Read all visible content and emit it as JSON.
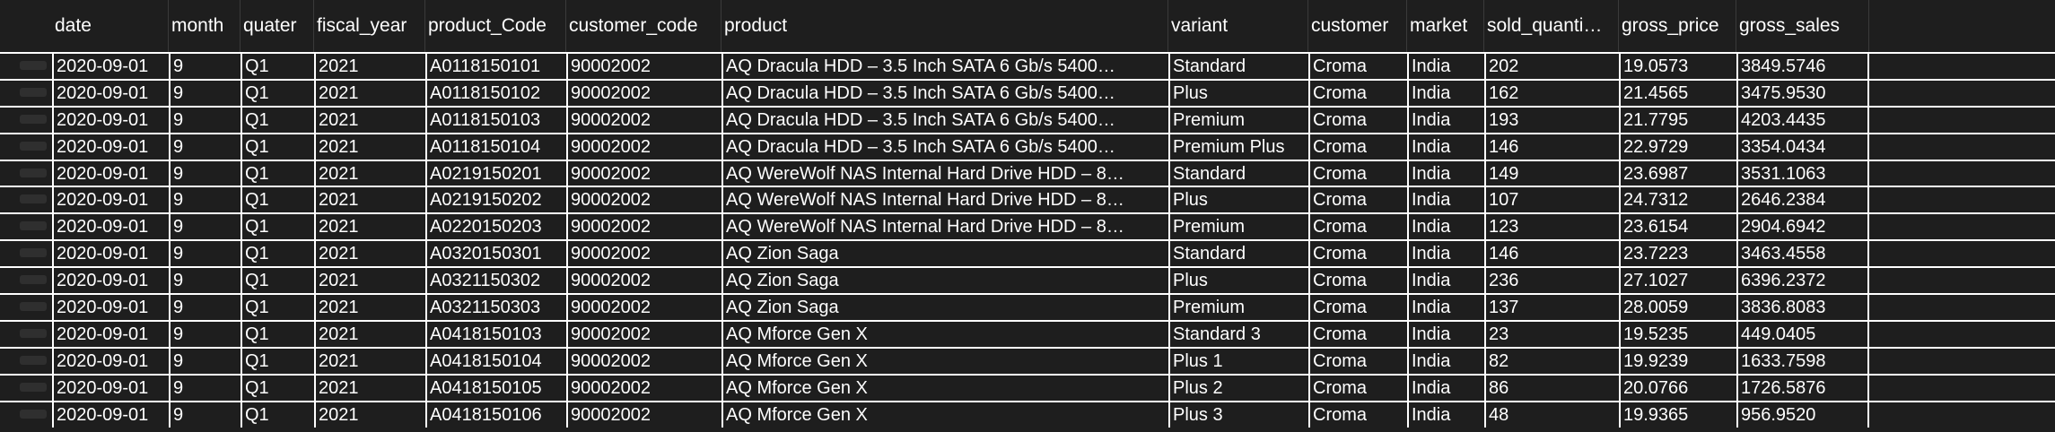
{
  "columns": [
    {
      "key": "date",
      "label": "date"
    },
    {
      "key": "month",
      "label": "month"
    },
    {
      "key": "quater",
      "label": "quater"
    },
    {
      "key": "fiscal_year",
      "label": "fiscal_year"
    },
    {
      "key": "product_code",
      "label": "product_Code"
    },
    {
      "key": "customer_code",
      "label": "customer_code"
    },
    {
      "key": "product",
      "label": "product"
    },
    {
      "key": "variant",
      "label": "variant"
    },
    {
      "key": "customer",
      "label": "customer"
    },
    {
      "key": "market",
      "label": "market"
    },
    {
      "key": "sold_quantity",
      "label": "sold_quanti…"
    },
    {
      "key": "gross_price",
      "label": "gross_price"
    },
    {
      "key": "gross_sales",
      "label": "gross_sales"
    }
  ],
  "rows": [
    [
      "2020-09-01",
      "9",
      "Q1",
      "2021",
      "A0118150101",
      "90002002",
      "AQ Dracula HDD – 3.5 Inch SATA 6 Gb/s 5400…",
      "Standard",
      "Croma",
      "India",
      "202",
      "19.0573",
      "3849.5746"
    ],
    [
      "2020-09-01",
      "9",
      "Q1",
      "2021",
      "A0118150102",
      "90002002",
      "AQ Dracula HDD – 3.5 Inch SATA 6 Gb/s 5400…",
      "Plus",
      "Croma",
      "India",
      "162",
      "21.4565",
      "3475.9530"
    ],
    [
      "2020-09-01",
      "9",
      "Q1",
      "2021",
      "A0118150103",
      "90002002",
      "AQ Dracula HDD – 3.5 Inch SATA 6 Gb/s 5400…",
      "Premium",
      "Croma",
      "India",
      "193",
      "21.7795",
      "4203.4435"
    ],
    [
      "2020-09-01",
      "9",
      "Q1",
      "2021",
      "A0118150104",
      "90002002",
      "AQ Dracula HDD – 3.5 Inch SATA 6 Gb/s 5400…",
      "Premium Plus",
      "Croma",
      "India",
      "146",
      "22.9729",
      "3354.0434"
    ],
    [
      "2020-09-01",
      "9",
      "Q1",
      "2021",
      "A0219150201",
      "90002002",
      "AQ WereWolf NAS Internal Hard Drive HDD – 8…",
      "Standard",
      "Croma",
      "India",
      "149",
      "23.6987",
      "3531.1063"
    ],
    [
      "2020-09-01",
      "9",
      "Q1",
      "2021",
      "A0219150202",
      "90002002",
      "AQ WereWolf NAS Internal Hard Drive HDD – 8…",
      "Plus",
      "Croma",
      "India",
      "107",
      "24.7312",
      "2646.2384"
    ],
    [
      "2020-09-01",
      "9",
      "Q1",
      "2021",
      "A0220150203",
      "90002002",
      "AQ WereWolf NAS Internal Hard Drive HDD – 8…",
      "Premium",
      "Croma",
      "India",
      "123",
      "23.6154",
      "2904.6942"
    ],
    [
      "2020-09-01",
      "9",
      "Q1",
      "2021",
      "A0320150301",
      "90002002",
      "AQ Zion Saga",
      "Standard",
      "Croma",
      "India",
      "146",
      "23.7223",
      "3463.4558"
    ],
    [
      "2020-09-01",
      "9",
      "Q1",
      "2021",
      "A0321150302",
      "90002002",
      "AQ Zion Saga",
      "Plus",
      "Croma",
      "India",
      "236",
      "27.1027",
      "6396.2372"
    ],
    [
      "2020-09-01",
      "9",
      "Q1",
      "2021",
      "A0321150303",
      "90002002",
      "AQ Zion Saga",
      "Premium",
      "Croma",
      "India",
      "137",
      "28.0059",
      "3836.8083"
    ],
    [
      "2020-09-01",
      "9",
      "Q1",
      "2021",
      "A0418150103",
      "90002002",
      "AQ Mforce Gen X",
      "Standard 3",
      "Croma",
      "India",
      "23",
      "19.5235",
      "449.0405"
    ],
    [
      "2020-09-01",
      "9",
      "Q1",
      "2021",
      "A0418150104",
      "90002002",
      "AQ Mforce Gen X",
      "Plus 1",
      "Croma",
      "India",
      "82",
      "19.9239",
      "1633.7598"
    ],
    [
      "2020-09-01",
      "9",
      "Q1",
      "2021",
      "A0418150105",
      "90002002",
      "AQ Mforce Gen X",
      "Plus 2",
      "Croma",
      "India",
      "86",
      "20.0766",
      "1726.5876"
    ],
    [
      "2020-09-01",
      "9",
      "Q1",
      "2021",
      "A0418150106",
      "90002002",
      "AQ Mforce Gen X",
      "Plus 3",
      "Croma",
      "India",
      "48",
      "19.9365",
      "956.9520"
    ]
  ]
}
